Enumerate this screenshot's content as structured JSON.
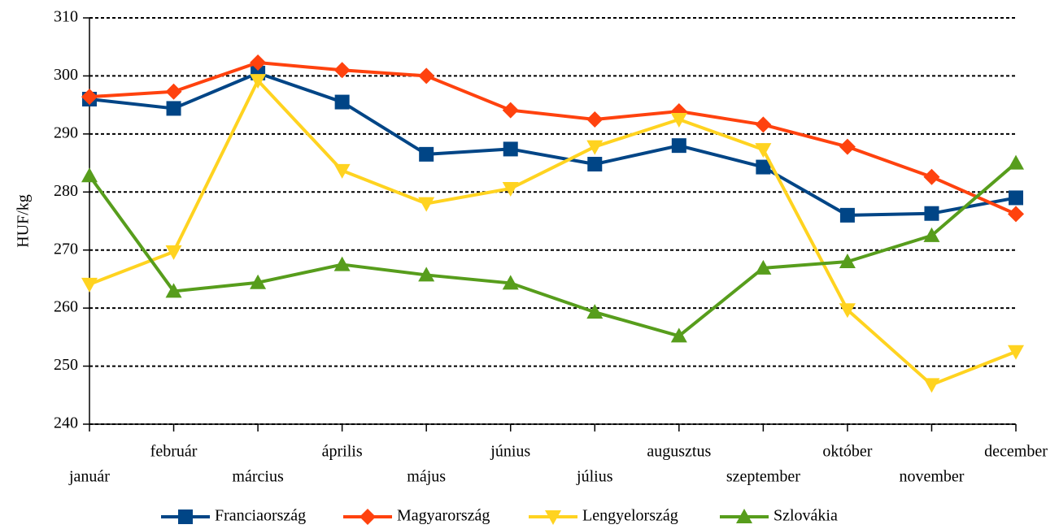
{
  "chart_data": {
    "type": "line",
    "ylabel": "HUF/kg",
    "categories": [
      "január",
      "február",
      "március",
      "április",
      "május",
      "június",
      "július",
      "augusztus",
      "szeptember",
      "október",
      "november",
      "december"
    ],
    "ylim": [
      240,
      310
    ],
    "yticks": [
      240,
      250,
      260,
      270,
      280,
      290,
      300,
      310
    ],
    "grid": true,
    "legend": "bottom",
    "series": [
      {
        "name": "Franciaország",
        "color": "#004586",
        "marker": "square",
        "values": [
          296.0,
          294.4,
          300.5,
          295.5,
          286.5,
          287.4,
          284.8,
          288.0,
          284.3,
          276.0,
          276.3,
          279.0
        ]
      },
      {
        "name": "Magyarország",
        "color": "#ff420e",
        "marker": "diamond",
        "values": [
          296.4,
          297.3,
          302.3,
          301.0,
          300.0,
          294.1,
          292.5,
          293.9,
          291.6,
          287.8,
          282.6,
          276.2
        ]
      },
      {
        "name": "Lengyelország",
        "color": "#ffd320",
        "marker": "triangle-down",
        "values": [
          264.1,
          269.7,
          299.2,
          283.7,
          278.0,
          280.6,
          287.8,
          292.5,
          287.3,
          259.7,
          246.8,
          252.5
        ]
      },
      {
        "name": "Szlovákia",
        "color": "#579d1c",
        "marker": "triangle-up",
        "values": [
          282.8,
          262.9,
          264.4,
          267.5,
          265.7,
          264.3,
          259.3,
          255.2,
          266.9,
          268.0,
          272.5,
          285.0
        ]
      }
    ]
  }
}
